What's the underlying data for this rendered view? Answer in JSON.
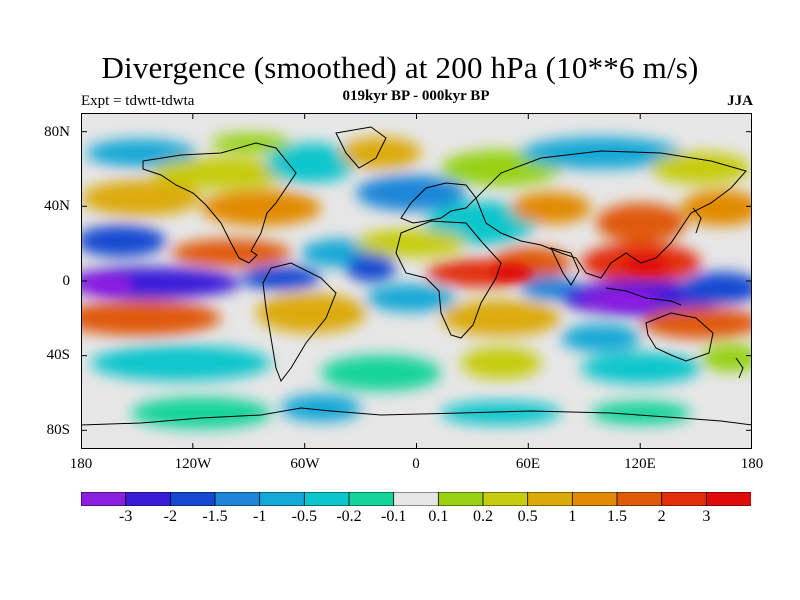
{
  "title": "Divergence (smoothed) at 200 hPa (10**6 m/s)",
  "subtitle": "019kyr BP - 000kyr BP",
  "left_label": "Expt = tdwtt-tdwta",
  "right_label": "JJA",
  "lat_ticks": [
    "80N",
    "40N",
    "0",
    "40S",
    "80S"
  ],
  "lon_ticks": [
    "180",
    "120W",
    "60W",
    "0",
    "60E",
    "120E",
    "180"
  ],
  "colorbar": {
    "labels": [
      "-3",
      "-2",
      "-1.5",
      "-1",
      "-0.5",
      "-0.2",
      "-0.1",
      "0.1",
      "0.2",
      "0.5",
      "1",
      "1.5",
      "2",
      "3"
    ],
    "colors": [
      "#8A1FE0",
      "#3A1CD8",
      "#1448D2",
      "#1E86D8",
      "#14A8D6",
      "#0CC6CC",
      "#12D49A",
      "#E6E6E6",
      "#96D212",
      "#C6CC10",
      "#DCAA08",
      "#E28A06",
      "#E05A08",
      "#E22E0A",
      "#E00A0A"
    ]
  },
  "colors": {
    "land_outline": "#000000",
    "background": "#E6E6E6"
  }
}
